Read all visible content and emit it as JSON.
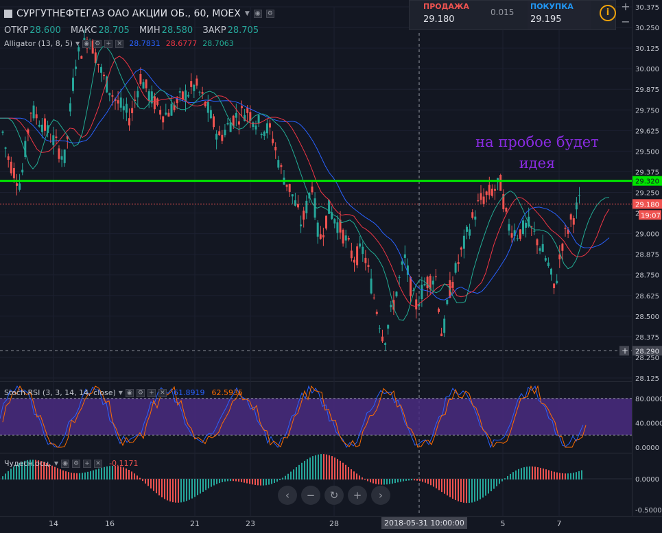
{
  "header": {
    "symbol_title": "СУРГУТНЕФТЕГАЗ ОАО АКЦИИ ОБ., 60, MOEX",
    "ohlc": {
      "open_label": "ОТКР",
      "open": "28.600",
      "high_label": "МАКС",
      "high": "28.705",
      "low_label": "МИН",
      "low": "28.580",
      "close_label": "ЗАКР",
      "close": "28.705"
    },
    "alligator": {
      "label": "Alligator (13, 8, 5)",
      "jaw": "28.7831",
      "teeth": "28.6777",
      "lips": "28.7063"
    }
  },
  "trade_panel": {
    "sell_label": "ПРОДАЖА",
    "sell_price": "29.180",
    "spread": "0.015",
    "buy_label": "ПОКУПКА",
    "buy_price": "29.195",
    "info_icon": "i"
  },
  "annotation": {
    "line1": "на пробое будет",
    "line2": "идея"
  },
  "price_axis": {
    "ticks": [
      "30.375",
      "30.250",
      "30.125",
      "30.000",
      "29.875",
      "29.750",
      "29.625",
      "29.500",
      "29.375",
      "29.250",
      "29.125",
      "29.000",
      "28.875",
      "28.750",
      "28.625",
      "28.500",
      "28.375",
      "28.250",
      "28.125"
    ],
    "tag_green": "29.320",
    "tag_red": "29.180",
    "tag_timer": "19:07",
    "tag_cross": "28.290",
    "plus": "+"
  },
  "stoch": {
    "label": "Stoch RSI (3, 3, 14, 14, close)",
    "k": "61.8919",
    "d": "62.5935",
    "ticks": [
      "80.0000",
      "40.0000",
      "0.0000"
    ]
  },
  "ao": {
    "label": "Чудесн.осц.",
    "value": "-0.1171",
    "ticks": [
      "0.0000",
      "-0.5000"
    ]
  },
  "time_axis": {
    "labels": [
      "14",
      "16",
      "21",
      "23",
      "28",
      "5",
      "7"
    ],
    "crosshair": "2018-05-31 10:00:00"
  },
  "nav": [
    "‹",
    "−",
    "↻",
    "+",
    "›"
  ],
  "colors": {
    "bg": "#131722",
    "up": "#26a69a",
    "down": "#ef5350",
    "jaw": "#2962ff",
    "teeth": "#f23645",
    "lips": "#22ab94",
    "level": "#00e600",
    "annot": "#8a2be2",
    "stoch_band": "#4a2b80",
    "stoch_k": "#2962ff",
    "stoch_d": "#ff6d00"
  }
}
